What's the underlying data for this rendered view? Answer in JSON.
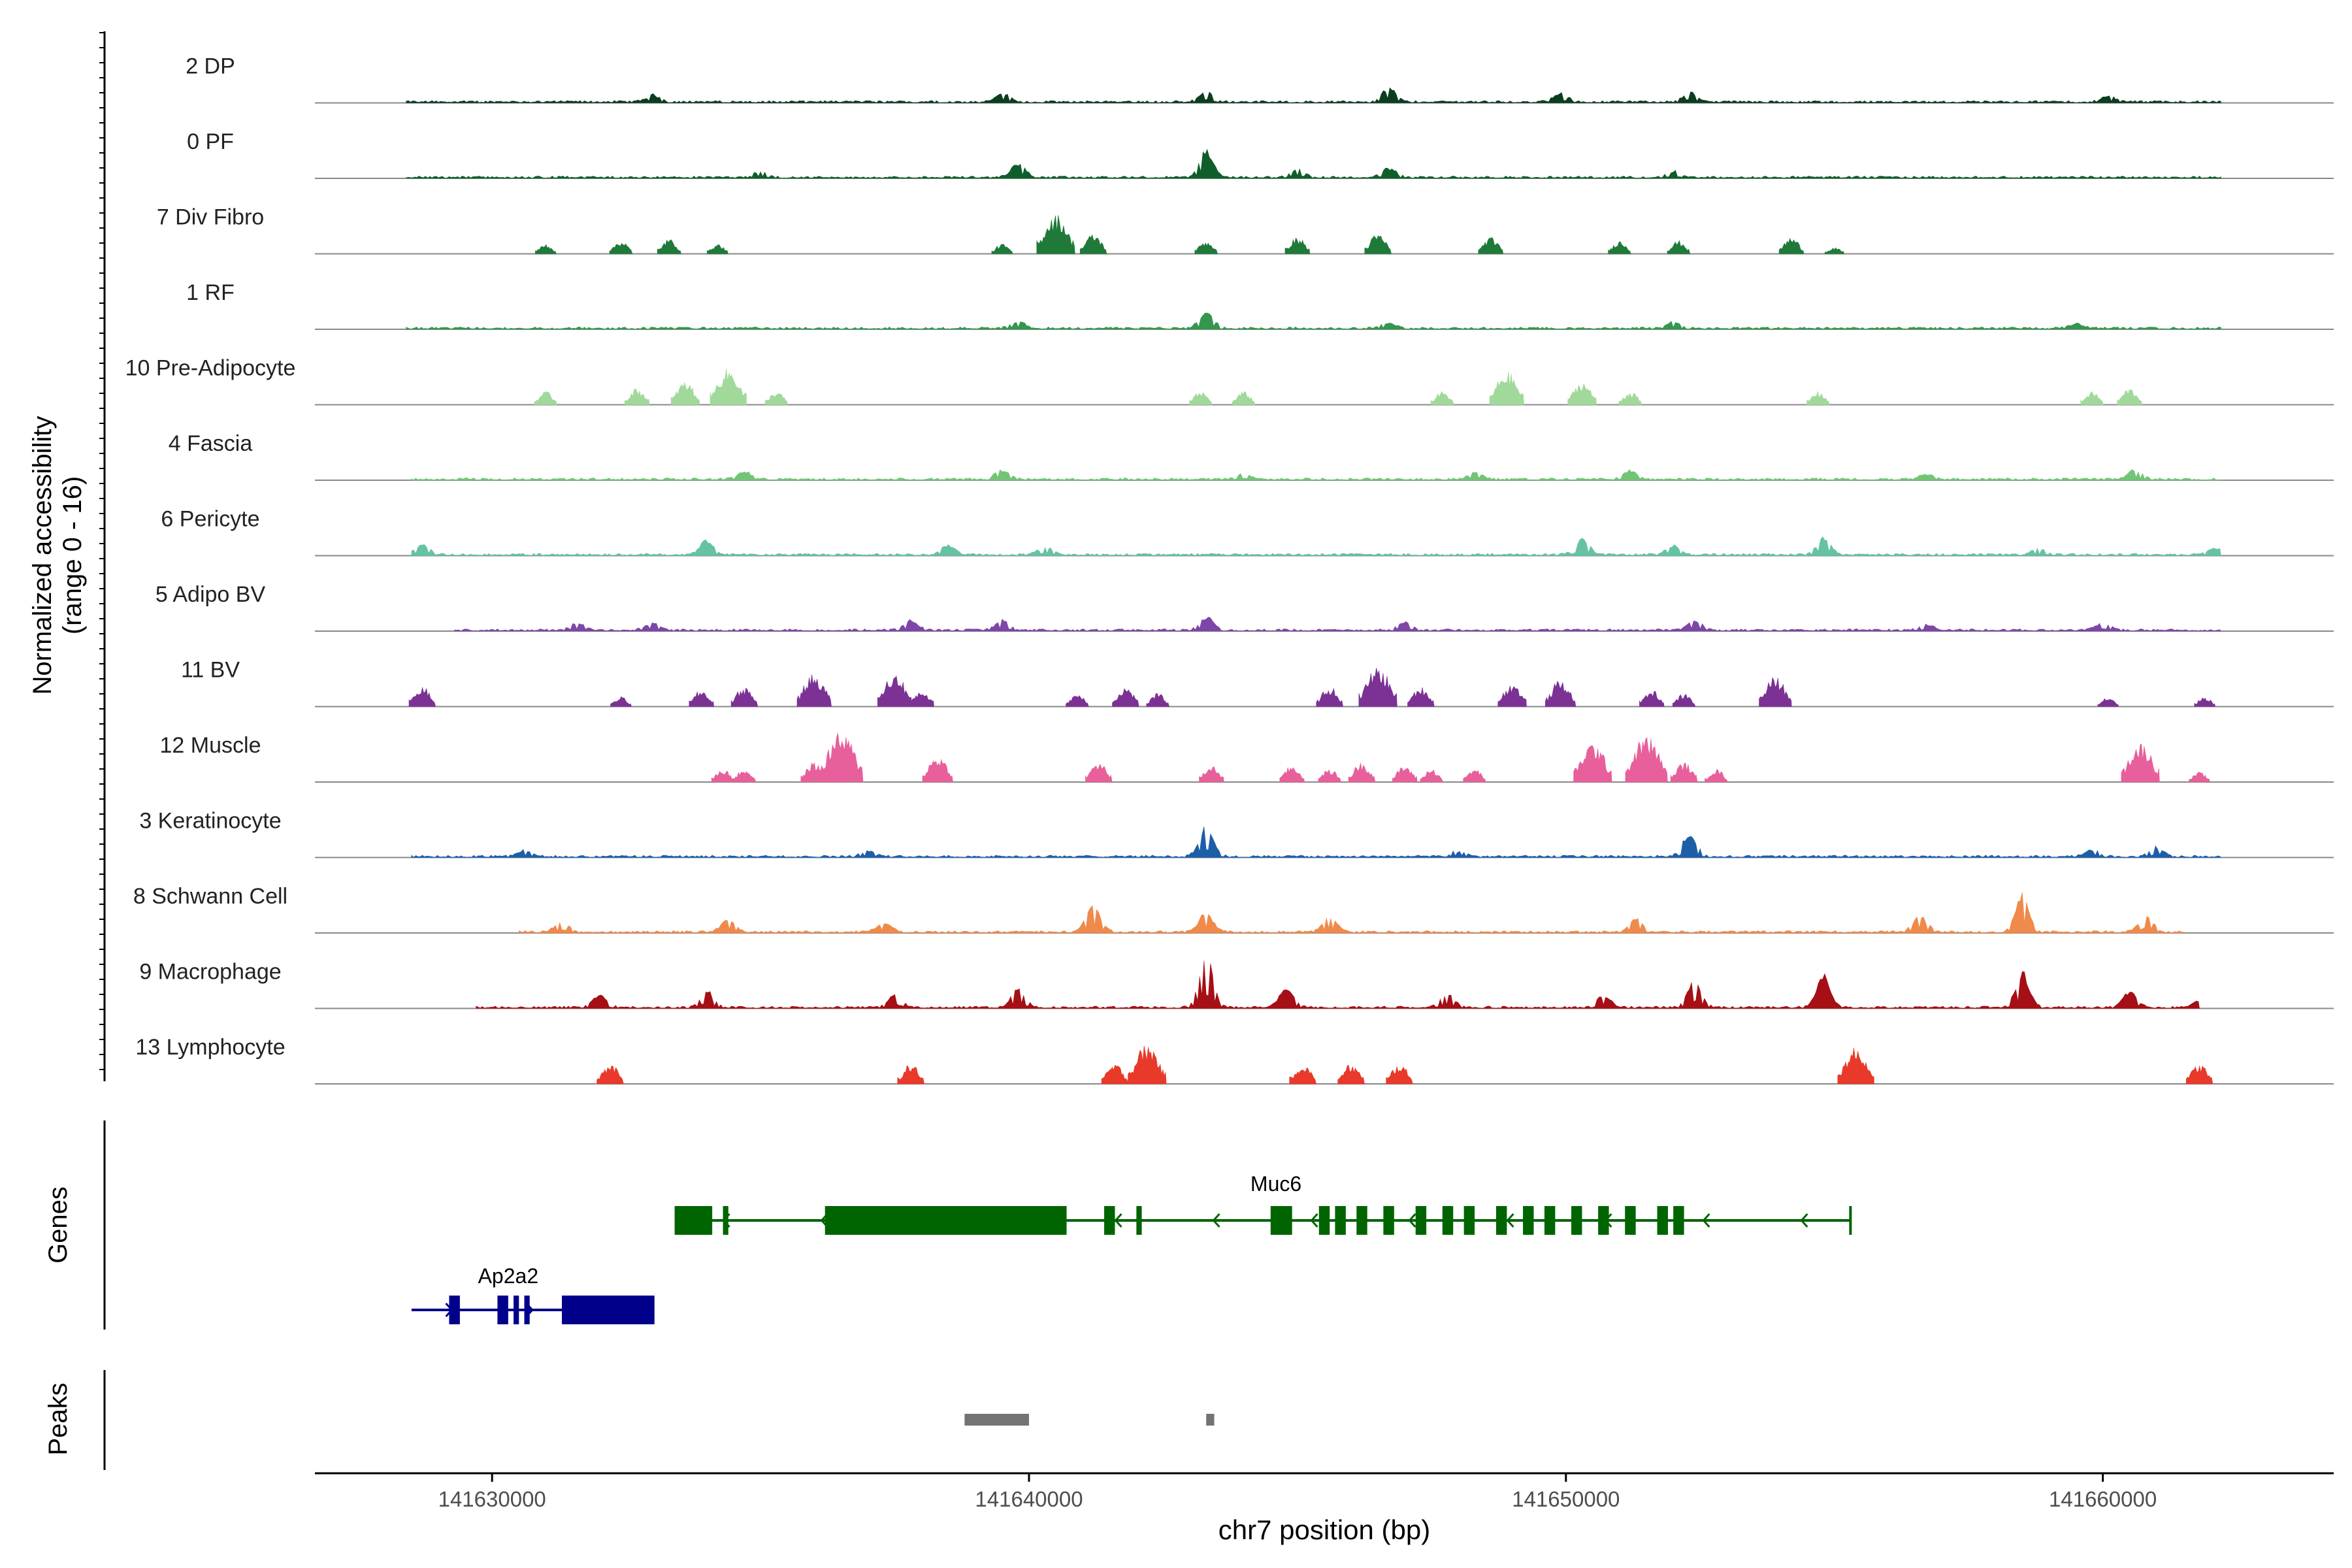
{
  "chart_data": {
    "type": "genome_coverage_tracks",
    "chromosome": "chr7",
    "xlabel": "chr7 position (bp)",
    "ylabel": "Normalized accessibility\n(range 0 - 16)",
    "xlim": [
      141626700,
      141664300
    ],
    "x_ticks": [
      141630000,
      141640000,
      141650000,
      141660000
    ],
    "x_tick_labels": [
      "141630000",
      "141640000",
      "141650000",
      "141660000"
    ],
    "y_range": [
      0,
      16
    ],
    "tracks": [
      {
        "name": "2 DP",
        "color": "#0b3d1f",
        "style": "dense",
        "start": 141628400,
        "end": 141662200,
        "peaks": [
          [
            141633000,
            2.2
          ],
          [
            141639500,
            2.8
          ],
          [
            141643300,
            3.2
          ],
          [
            141646700,
            4.4
          ],
          [
            141649900,
            2.6
          ],
          [
            141652300,
            3.0
          ],
          [
            141660100,
            1.8
          ]
        ]
      },
      {
        "name": "0 PF",
        "color": "#0e5e2a",
        "style": "dense",
        "start": 141628400,
        "end": 141662200,
        "peaks": [
          [
            141635000,
            1.8
          ],
          [
            141639800,
            4.4
          ],
          [
            141643300,
            8.4
          ],
          [
            141645000,
            2.6
          ],
          [
            141646700,
            3.0
          ],
          [
            141652000,
            2.0
          ]
        ]
      },
      {
        "name": "7 Div Fibro",
        "color": "#1f7a3a",
        "style": "sparse",
        "start": 141630800,
        "end": 141655400,
        "peaks": [
          [
            141631000,
            3.0
          ],
          [
            141632400,
            4.0
          ],
          [
            141633300,
            4.5
          ],
          [
            141634200,
            3.0
          ],
          [
            141639500,
            3.0
          ],
          [
            141640500,
            12.0
          ],
          [
            141641200,
            6.0
          ],
          [
            141643300,
            4.0
          ],
          [
            141645000,
            5.0
          ],
          [
            141646500,
            6.0
          ],
          [
            141648600,
            5.0
          ],
          [
            141651000,
            4.0
          ],
          [
            141652100,
            4.0
          ],
          [
            141654200,
            5.0
          ],
          [
            141655000,
            2.0
          ]
        ]
      },
      {
        "name": "1 RF",
        "color": "#34974d",
        "style": "dense",
        "start": 141628400,
        "end": 141662200,
        "peaks": [
          [
            141639800,
            2.0
          ],
          [
            141643300,
            5.2
          ],
          [
            141646700,
            1.6
          ],
          [
            141652000,
            2.0
          ],
          [
            141659500,
            1.4
          ]
        ]
      },
      {
        "name": "10 Pre-Adipocyte",
        "color": "#a1d99b",
        "style": "sparse",
        "start": 141630900,
        "end": 141660700,
        "peaks": [
          [
            141631000,
            4.0
          ],
          [
            141632700,
            5.0
          ],
          [
            141633600,
            7.0
          ],
          [
            141634400,
            11.0
          ],
          [
            141635300,
            4.0
          ],
          [
            141643200,
            4.0
          ],
          [
            141644000,
            4.0
          ],
          [
            141647700,
            4.0
          ],
          [
            141648900,
            10.0
          ],
          [
            141650300,
            7.0
          ],
          [
            141651200,
            4.0
          ],
          [
            141654700,
            4.0
          ],
          [
            141659800,
            4.0
          ],
          [
            141660500,
            5.0
          ]
        ]
      },
      {
        "name": "4 Fascia",
        "color": "#74c476",
        "style": "dense",
        "start": 141628500,
        "end": 141662200,
        "peaks": [
          [
            141634700,
            2.4
          ],
          [
            141639500,
            3.0
          ],
          [
            141644000,
            1.6
          ],
          [
            141648300,
            2.2
          ],
          [
            141651200,
            2.6
          ],
          [
            141656700,
            1.6
          ],
          [
            141660600,
            3.0
          ]
        ]
      },
      {
        "name": "6 Pericyte",
        "color": "#66c2a4",
        "style": "dense",
        "start": 141628500,
        "end": 141662200,
        "peaks": [
          [
            141628700,
            3.0
          ],
          [
            141634000,
            4.5
          ],
          [
            141638500,
            3.0
          ],
          [
            141640300,
            2.4
          ],
          [
            141650300,
            5.0
          ],
          [
            141652000,
            3.0
          ],
          [
            141654800,
            5.2
          ],
          [
            141658800,
            1.8
          ],
          [
            141662100,
            2.0
          ]
        ]
      },
      {
        "name": "5 Adipo BV",
        "color": "#7d46a8",
        "style": "dense",
        "start": 141629300,
        "end": 141662200,
        "peaks": [
          [
            141631600,
            2.4
          ],
          [
            141633000,
            2.2
          ],
          [
            141637800,
            3.0
          ],
          [
            141639500,
            3.0
          ],
          [
            141643300,
            4.2
          ],
          [
            141647000,
            2.6
          ],
          [
            141652400,
            3.0
          ],
          [
            141656700,
            1.8
          ],
          [
            141660000,
            2.4
          ]
        ]
      },
      {
        "name": "11 BV",
        "color": "#7b3294",
        "style": "sparse",
        "start": 141628500,
        "end": 141662200,
        "peaks": [
          [
            141628700,
            6.0
          ],
          [
            141632400,
            3.0
          ],
          [
            141633900,
            5.0
          ],
          [
            141634700,
            6.0
          ],
          [
            141636000,
            10.0
          ],
          [
            141637500,
            10.0
          ],
          [
            141638000,
            5.0
          ],
          [
            141640900,
            4.0
          ],
          [
            141641800,
            6.0
          ],
          [
            141642400,
            4.0
          ],
          [
            141645600,
            6.0
          ],
          [
            141646500,
            12.0
          ],
          [
            141647300,
            6.0
          ],
          [
            141649000,
            7.0
          ],
          [
            141649900,
            8.0
          ],
          [
            141651600,
            5.0
          ],
          [
            141652200,
            4.0
          ],
          [
            141653900,
            9.0
          ],
          [
            141660100,
            3.0
          ],
          [
            141661900,
            3.0
          ]
        ]
      },
      {
        "name": "12 Muscle",
        "color": "#e7609b",
        "style": "sparse",
        "start": 141634300,
        "end": 141661800,
        "peaks": [
          [
            141634300,
            4.0
          ],
          [
            141634700,
            4.0
          ],
          [
            141636000,
            6.0
          ],
          [
            141636500,
            15.0
          ],
          [
            141638300,
            8.0
          ],
          [
            141641300,
            6.0
          ],
          [
            141643400,
            5.0
          ],
          [
            141644900,
            5.0
          ],
          [
            141645600,
            4.0
          ],
          [
            141646200,
            6.0
          ],
          [
            141647000,
            5.0
          ],
          [
            141647500,
            4.0
          ],
          [
            141648300,
            4.0
          ],
          [
            141650500,
            12.0
          ],
          [
            141651500,
            14.0
          ],
          [
            141652200,
            6.0
          ],
          [
            141652800,
            4.0
          ],
          [
            141660700,
            12.0
          ],
          [
            141661800,
            3.0
          ]
        ]
      },
      {
        "name": "3 Keratinocyte",
        "color": "#1c5fa8",
        "style": "dense",
        "start": 141628500,
        "end": 141662200,
        "peaks": [
          [
            141630600,
            2.0
          ],
          [
            141637000,
            1.8
          ],
          [
            141643300,
            9.6
          ],
          [
            141648000,
            1.8
          ],
          [
            141652300,
            7.2
          ],
          [
            141659800,
            2.0
          ],
          [
            141661000,
            3.0
          ]
        ]
      },
      {
        "name": "8 Schwann Cell",
        "color": "#f08a4b",
        "style": "dense",
        "start": 141630500,
        "end": 141661500,
        "peaks": [
          [
            141631300,
            3.0
          ],
          [
            141634400,
            4.0
          ],
          [
            141637300,
            3.0
          ],
          [
            141641200,
            9.0
          ],
          [
            141643300,
            6.0
          ],
          [
            141645600,
            5.0
          ],
          [
            141651300,
            4.0
          ],
          [
            141656600,
            5.0
          ],
          [
            141658500,
            12.0
          ],
          [
            141660800,
            5.0
          ]
        ]
      },
      {
        "name": "9 Macrophage",
        "color": "#a50f15",
        "style": "dense",
        "start": 141629700,
        "end": 141661800,
        "peaks": [
          [
            141632000,
            4.0
          ],
          [
            141634000,
            5.0
          ],
          [
            141637500,
            4.0
          ],
          [
            141639800,
            6.0
          ],
          [
            141643300,
            16.0
          ],
          [
            141644800,
            6.0
          ],
          [
            141647800,
            4.0
          ],
          [
            141650700,
            4.0
          ],
          [
            141652400,
            8.0
          ],
          [
            141654800,
            10.0
          ],
          [
            141658500,
            11.0
          ],
          [
            141660500,
            5.0
          ],
          [
            141661800,
            2.0
          ]
        ]
      },
      {
        "name": "13 Lymphocyte",
        "color": "#e8392a",
        "style": "sparse",
        "start": 141632000,
        "end": 141662000,
        "peaks": [
          [
            141632200,
            6.0
          ],
          [
            141637800,
            6.0
          ],
          [
            141641600,
            6.0
          ],
          [
            141642200,
            12.0
          ],
          [
            141645100,
            6.0
          ],
          [
            141646000,
            6.0
          ],
          [
            141646900,
            6.0
          ],
          [
            141655400,
            11.0
          ],
          [
            141661800,
            6.0
          ]
        ]
      }
    ],
    "genes_label": "Genes",
    "genes": [
      {
        "name": "Muc6",
        "color": "#006400",
        "strand": "-",
        "start": 141633400,
        "end": 141655300,
        "exons": [
          [
            141633400,
            141634100
          ],
          [
            141634300,
            141634400
          ],
          [
            141636200,
            141640700
          ],
          [
            141641400,
            141641600
          ],
          [
            141642000,
            141642100
          ],
          [
            141644500,
            141644900
          ],
          [
            141645400,
            141645600
          ],
          [
            141645700,
            141645900
          ],
          [
            141646100,
            141646300
          ],
          [
            141646600,
            141646800
          ],
          [
            141647200,
            141647400
          ],
          [
            141647700,
            141647900
          ],
          [
            141648100,
            141648300
          ],
          [
            141648700,
            141648900
          ],
          [
            141649200,
            141649400
          ],
          [
            141649600,
            141649800
          ],
          [
            141650100,
            141650300
          ],
          [
            141650600,
            141650800
          ],
          [
            141651100,
            141651300
          ],
          [
            141651700,
            141651900
          ],
          [
            141652000,
            141652200
          ]
        ]
      },
      {
        "name": "Ap2a2",
        "color": "#00008b",
        "strand": "+",
        "start": 141628500,
        "end": 141633000,
        "exons": [
          [
            141629200,
            141629400
          ],
          [
            141630100,
            141630300
          ],
          [
            141630400,
            141630500
          ],
          [
            141630600,
            141630700
          ],
          [
            141631300,
            141633000
          ]
        ]
      }
    ],
    "peaks_label": "Peaks",
    "peak_regions": [
      [
        141638800,
        141640000
      ],
      [
        141643300,
        141643450
      ]
    ]
  }
}
